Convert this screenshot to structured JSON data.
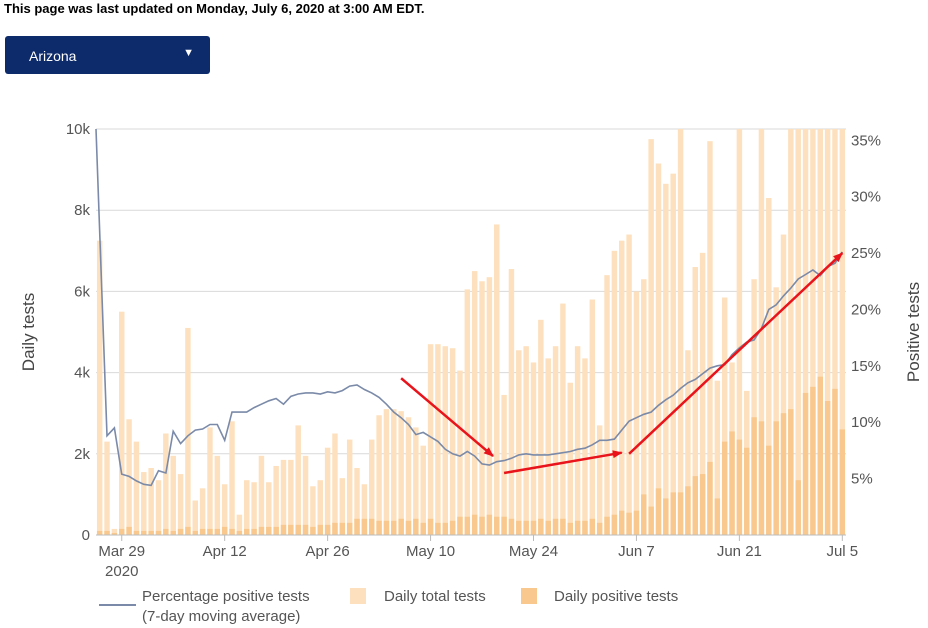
{
  "header": {
    "updated_text": "This page was last updated on Monday, July 6, 2020 at 3:00 AM EDT.",
    "state_selected": "Arizona",
    "dropdown_arrow": "▼"
  },
  "colors": {
    "total_bar": "#fde0bd",
    "positive_bar": "#f8c88e",
    "line": "#7a8aa8",
    "arrow": "#e8131b",
    "grid": "#d9d9d9",
    "select_bg": "#0d2b6b"
  },
  "chart_data": {
    "type": "bar",
    "title": "",
    "ylabel": "Daily tests",
    "y2label": "Positive tests",
    "ylim": [
      0,
      10000
    ],
    "y2lim": [
      0,
      36
    ],
    "yticks": [
      0,
      2000,
      4000,
      6000,
      8000,
      10000
    ],
    "ytick_labels": [
      "0",
      "2k",
      "4k",
      "6k",
      "8k",
      "10k"
    ],
    "y2ticks": [
      5,
      10,
      15,
      20,
      25,
      30,
      35
    ],
    "y2tick_labels": [
      "5%",
      "10%",
      "15%",
      "20%",
      "25%",
      "30%",
      "35%"
    ],
    "xtick_labels": [
      {
        "day": 3,
        "label": "Mar 29",
        "sub": "2020"
      },
      {
        "day": 17,
        "label": "Apr 12"
      },
      {
        "day": 31,
        "label": "Apr 26"
      },
      {
        "day": 45,
        "label": "May 10"
      },
      {
        "day": 59,
        "label": "May 24"
      },
      {
        "day": 73,
        "label": "Jun 7"
      },
      {
        "day": 87,
        "label": "Jun 21"
      },
      {
        "day": 101,
        "label": "Jul 5"
      }
    ],
    "num_days": 102,
    "series": [
      {
        "name": "Daily total tests",
        "kind": "bar",
        "values": [
          7250,
          2300,
          150,
          5500,
          2850,
          2300,
          1550,
          1650,
          1350,
          2500,
          1950,
          1500,
          5100,
          850,
          1150,
          2650,
          1950,
          1250,
          2800,
          500,
          1350,
          1300,
          1950,
          1300,
          1700,
          1850,
          1850,
          2700,
          1950,
          1200,
          1350,
          2150,
          2500,
          1400,
          2350,
          1650,
          1250,
          2350,
          2950,
          3100,
          3100,
          3050,
          2900,
          2650,
          2200,
          4700,
          4700,
          4650,
          4600,
          4050,
          6050,
          6500,
          6250,
          6350,
          7650,
          3450,
          6550,
          4550,
          4650,
          4250,
          5300,
          4350,
          4650,
          5700,
          3750,
          4650,
          4350,
          5800,
          2700,
          6400,
          7000,
          7250,
          7400,
          6000,
          6300,
          9750,
          9150,
          8650,
          8900,
          10150,
          4550,
          6600,
          6950,
          9700,
          3800,
          5850,
          4250,
          10050,
          3550,
          6300,
          10100,
          8300,
          6100,
          7400,
          10000,
          10100,
          10000,
          10100,
          10000,
          10100,
          10100,
          10100
        ]
      },
      {
        "name": "Daily positive tests",
        "kind": "bar",
        "values": [
          100,
          100,
          50,
          150,
          200,
          100,
          100,
          100,
          100,
          150,
          100,
          150,
          200,
          100,
          150,
          150,
          150,
          200,
          150,
          100,
          150,
          150,
          200,
          200,
          200,
          250,
          250,
          250,
          250,
          200,
          250,
          250,
          300,
          300,
          300,
          400,
          400,
          400,
          350,
          350,
          350,
          400,
          350,
          400,
          300,
          400,
          300,
          300,
          350,
          450,
          450,
          500,
          450,
          500,
          450,
          450,
          400,
          350,
          350,
          350,
          400,
          350,
          400,
          400,
          300,
          350,
          350,
          400,
          300,
          450,
          500,
          600,
          550,
          600,
          1000,
          700,
          1150,
          900,
          1050,
          1050,
          1200,
          1450,
          1500,
          1800,
          900,
          2300,
          2550,
          2350,
          2150,
          2900,
          2800,
          2200,
          2800,
          3000,
          3100,
          1350,
          3500,
          3650,
          3900,
          3300,
          3600,
          2600
        ]
      },
      {
        "name": "Percentage positive tests (7-day moving average)",
        "kind": "line",
        "unit": "%",
        "values": [
          36.0,
          8.8,
          9.5,
          5.4,
          5.2,
          4.8,
          4.5,
          4.4,
          5.7,
          5.5,
          9.2,
          8.1,
          8.8,
          9.3,
          9.4,
          9.8,
          9.8,
          8.4,
          10.9,
          10.9,
          10.9,
          11.3,
          11.6,
          11.9,
          12.1,
          11.6,
          12.3,
          12.5,
          12.6,
          12.6,
          12.5,
          12.7,
          12.6,
          12.8,
          13.2,
          13.3,
          12.9,
          12.6,
          12.2,
          11.6,
          10.9,
          10.4,
          9.8,
          8.9,
          9.1,
          8.7,
          8.3,
          7.6,
          7.2,
          7.0,
          7.4,
          7.0,
          6.3,
          6.2,
          6.5,
          6.6,
          6.8,
          7.1,
          7.2,
          7.1,
          7.1,
          7.1,
          7.2,
          7.3,
          7.4,
          7.6,
          7.7,
          8.0,
          8.4,
          8.4,
          8.5,
          9.3,
          10.1,
          10.4,
          10.7,
          10.9,
          11.5,
          12.0,
          12.4,
          13.0,
          13.5,
          13.8,
          14.3,
          14.8,
          15.0,
          15.1,
          16.0,
          16.6,
          17.1,
          17.3,
          18.3,
          20.0,
          20.4,
          21.2,
          21.9,
          22.7,
          23.1,
          23.5,
          23.0,
          23.8,
          24.1,
          25.1
        ]
      }
    ],
    "annotations": [
      {
        "type": "arrow",
        "from_day": 41,
        "from_pct": 13.9,
        "to_day": 53.5,
        "to_pct": 7.0
      },
      {
        "type": "arrow",
        "from_day": 55,
        "from_pct": 5.5,
        "to_day": 71,
        "to_pct": 7.3
      },
      {
        "type": "arrow",
        "from_day": 72,
        "from_pct": 7.2,
        "to_day": 101,
        "to_pct": 25.0
      }
    ],
    "legend": {
      "position": "bottom",
      "items": [
        {
          "label": "Percentage positive tests",
          "label2": "(7-day moving average)",
          "kind": "line"
        },
        {
          "label": "Daily total tests",
          "kind": "total"
        },
        {
          "label": "Daily positive tests",
          "kind": "positive"
        }
      ]
    }
  }
}
